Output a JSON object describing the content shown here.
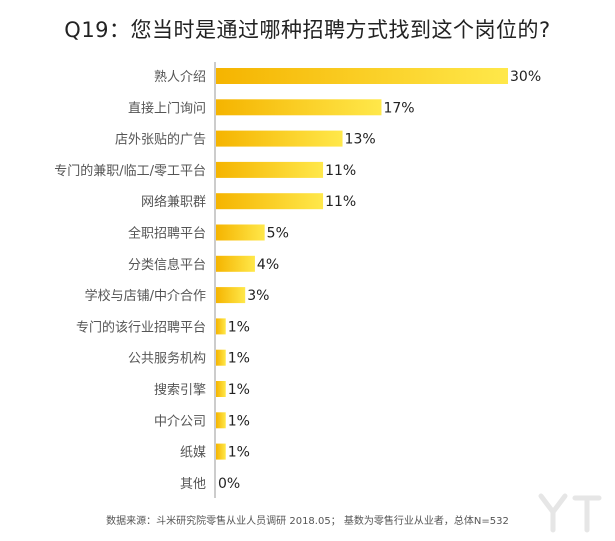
{
  "chart_data": {
    "type": "bar",
    "orientation": "horizontal",
    "title": "Q19：您当时是通过哪种招聘方式找到这个岗位的?",
    "categories": [
      "熟人介绍",
      "直接上门询问",
      "店外张贴的广告",
      "专门的兼职/临工/零工平台",
      "网络兼职群",
      "全职招聘平台",
      "分类信息平台",
      "学校与店铺/中介合作",
      "专门的该行业招聘平台",
      "公共服务机构",
      "搜索引擎",
      "中介公司",
      "纸媒",
      "其他"
    ],
    "values": [
      30,
      17,
      13,
      11,
      11,
      5,
      4,
      3,
      1,
      1,
      1,
      1,
      1,
      0
    ],
    "value_labels": [
      "30%",
      "17%",
      "13%",
      "11%",
      "11%",
      "5%",
      "4%",
      "3%",
      "1%",
      "1%",
      "1%",
      "1%",
      "1%",
      "0%"
    ],
    "unit": "%",
    "xlim": [
      0,
      30
    ],
    "grid": false,
    "legend": "none",
    "bar_gradient": [
      "#f5b400",
      "#ffe84a"
    ]
  },
  "footer": {
    "source": "数据来源：斗米研究院零售从业人员调研 2018.05； 基数为零售行业从业者，总体N=532"
  }
}
